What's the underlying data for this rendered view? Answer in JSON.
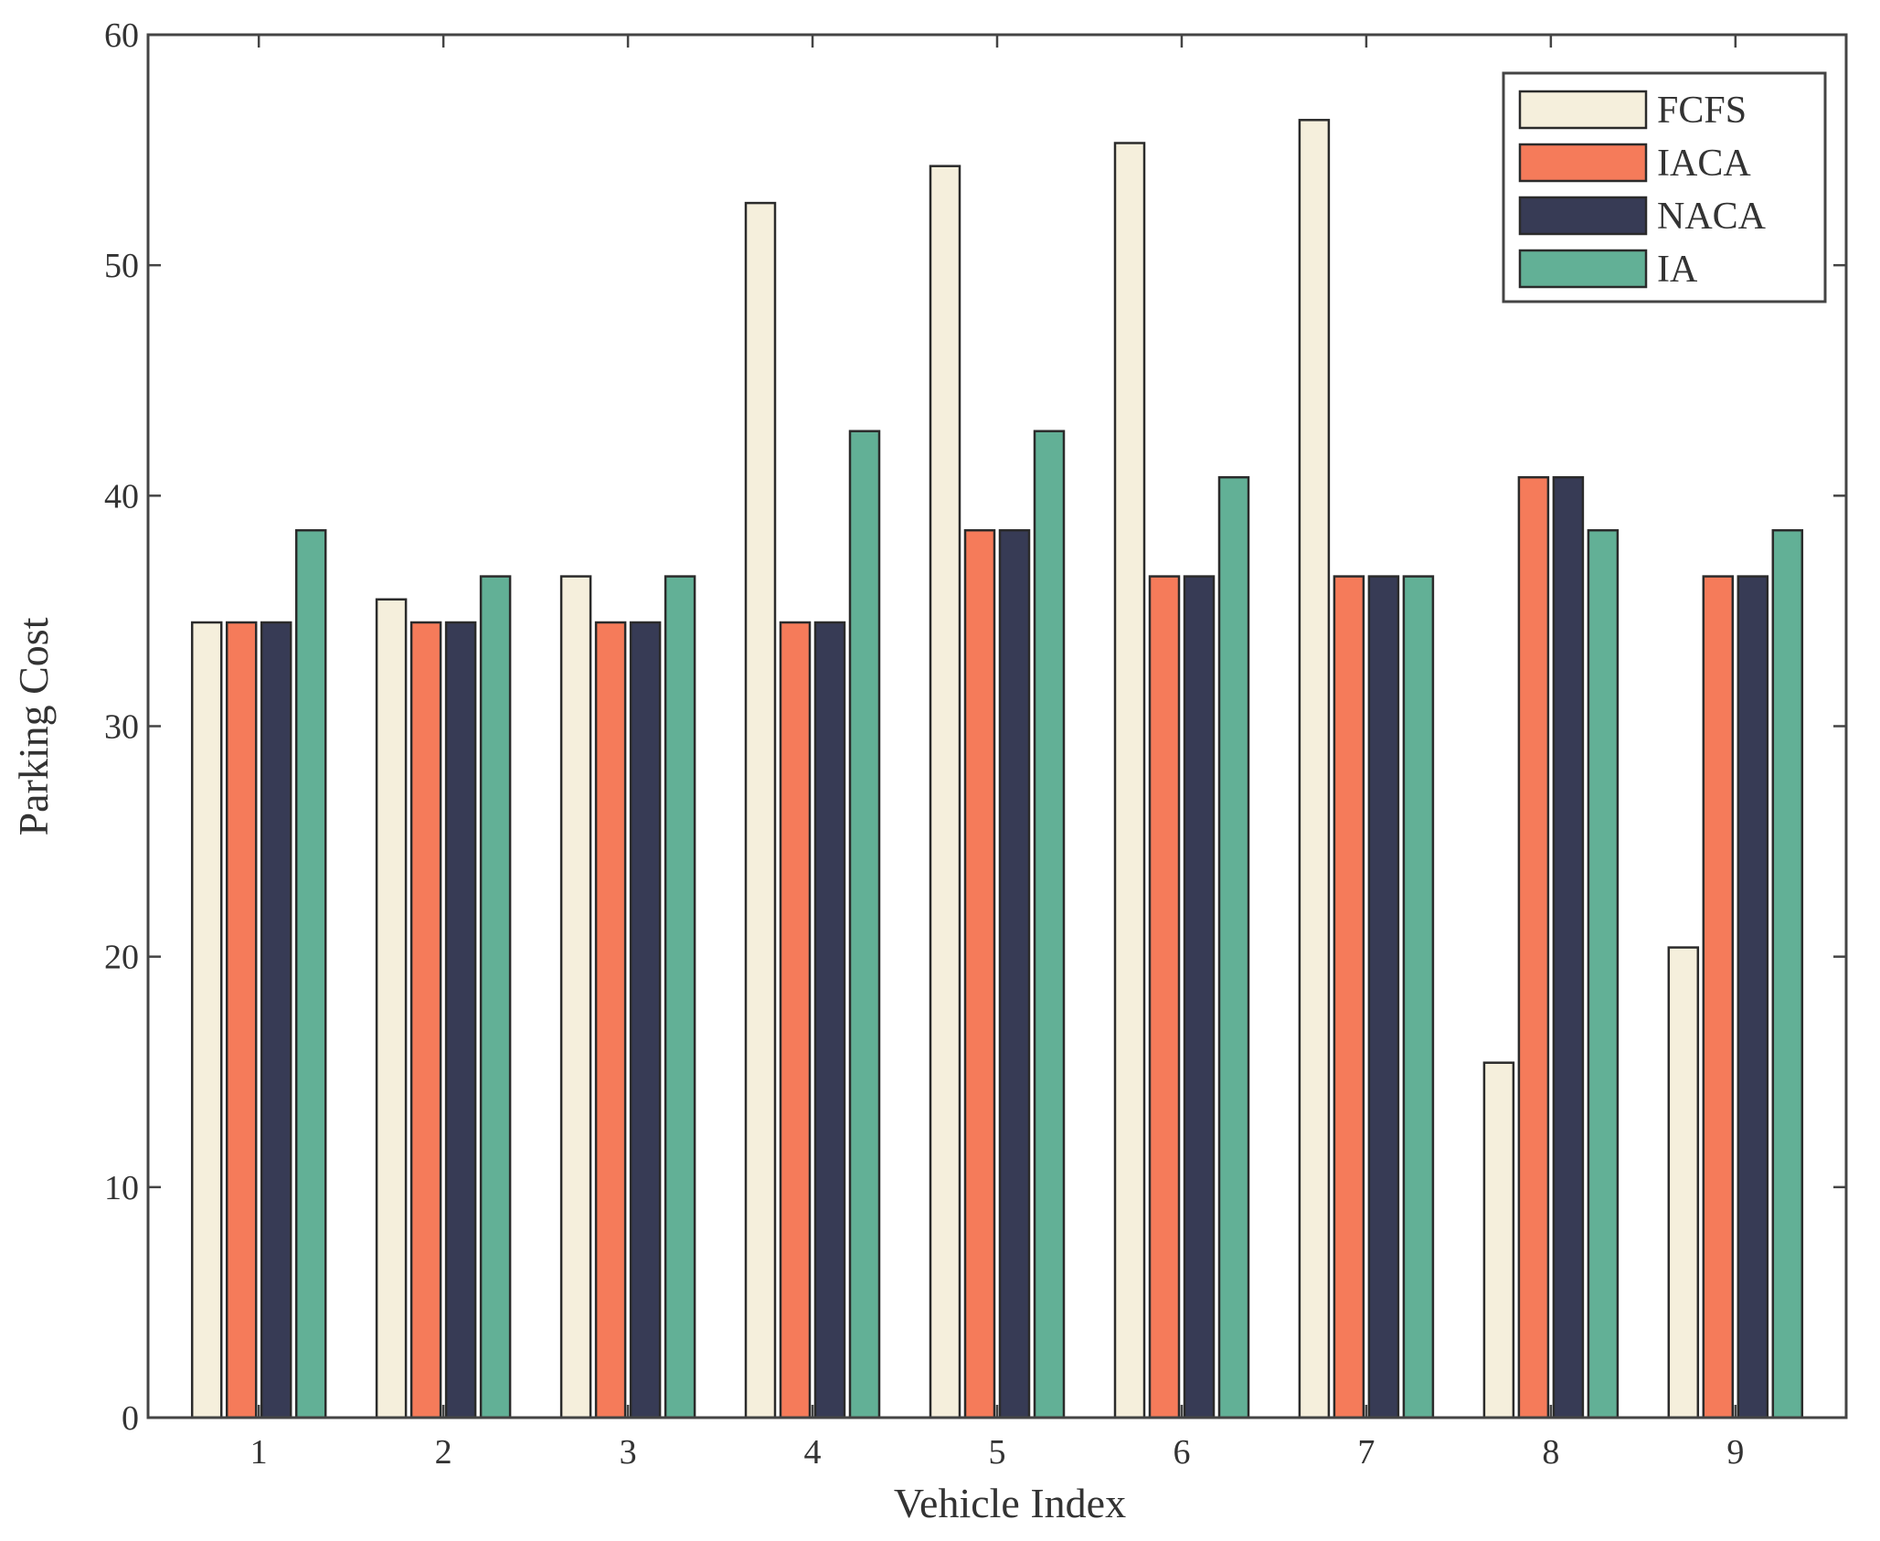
{
  "chart_data": {
    "type": "bar",
    "title": "",
    "xlabel": "Vehicle Index",
    "ylabel": "Parking Cost",
    "ylim": [
      0,
      60
    ],
    "yticks": [
      0,
      10,
      20,
      30,
      40,
      50,
      60
    ],
    "grid": false,
    "legend_position": "top-right",
    "categories": [
      "1",
      "2",
      "3",
      "4",
      "5",
      "6",
      "7",
      "8",
      "9"
    ],
    "series": [
      {
        "name": "FCFS",
        "color": "#F5EFDC",
        "values": [
          34.5,
          35.5,
          36.5,
          52.7,
          54.3,
          55.3,
          56.3,
          15.4,
          20.4
        ]
      },
      {
        "name": "IACA",
        "color": "#F57B5A",
        "values": [
          34.5,
          34.5,
          34.5,
          34.5,
          38.5,
          36.5,
          36.5,
          40.8,
          36.5
        ]
      },
      {
        "name": "NACA",
        "color": "#373B55",
        "values": [
          34.5,
          34.5,
          34.5,
          34.5,
          38.5,
          36.5,
          36.5,
          40.8,
          36.5
        ]
      },
      {
        "name": "IA",
        "color": "#62B096",
        "values": [
          38.5,
          36.5,
          36.5,
          42.8,
          42.8,
          40.8,
          36.5,
          38.5,
          38.5
        ]
      }
    ]
  }
}
